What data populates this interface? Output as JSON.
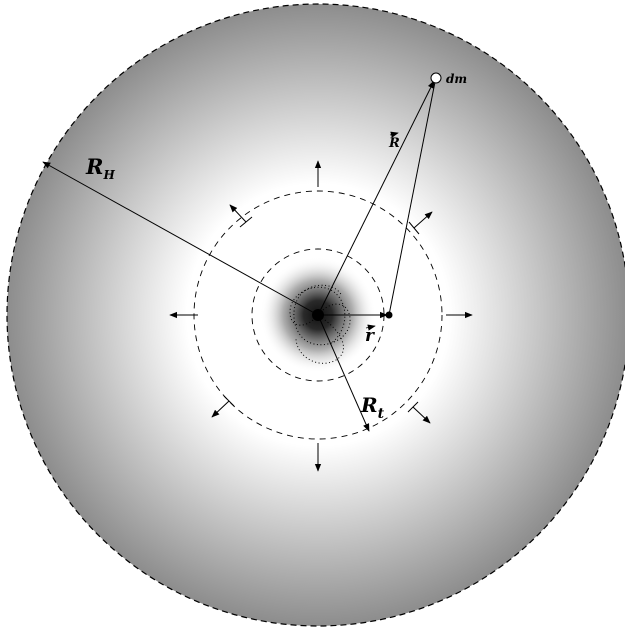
{
  "labels": {
    "halo_radius": "R",
    "halo_radius_sub": "H",
    "tidal_radius": "R",
    "tidal_radius_sub": "t",
    "position_R": "R",
    "position_r": "r",
    "mass_element": "dm"
  },
  "colors": {
    "background": "#ffffff",
    "halo_inner": "#ffffff",
    "halo_outer": "#8c8c8c",
    "core": "#1a1a1a",
    "ink": "#000000"
  }
}
